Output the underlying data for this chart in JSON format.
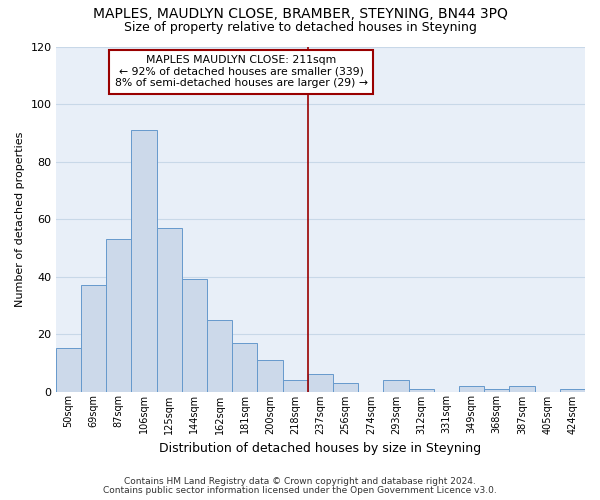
{
  "title": "MAPLES, MAUDLYN CLOSE, BRAMBER, STEYNING, BN44 3PQ",
  "subtitle": "Size of property relative to detached houses in Steyning",
  "xlabel": "Distribution of detached houses by size in Steyning",
  "ylabel": "Number of detached properties",
  "footnote1": "Contains HM Land Registry data © Crown copyright and database right 2024.",
  "footnote2": "Contains public sector information licensed under the Open Government Licence v3.0.",
  "bar_labels": [
    "50sqm",
    "69sqm",
    "87sqm",
    "106sqm",
    "125sqm",
    "144sqm",
    "162sqm",
    "181sqm",
    "200sqm",
    "218sqm",
    "237sqm",
    "256sqm",
    "274sqm",
    "293sqm",
    "312sqm",
    "331sqm",
    "349sqm",
    "368sqm",
    "387sqm",
    "405sqm",
    "424sqm"
  ],
  "bar_values": [
    15,
    37,
    53,
    91,
    57,
    39,
    25,
    17,
    11,
    4,
    6,
    3,
    0,
    4,
    1,
    0,
    2,
    1,
    2,
    0,
    1
  ],
  "bar_color": "#ccd9ea",
  "bar_edge_color": "#6699cc",
  "vline_x": 9.5,
  "vline_color": "#990000",
  "annotation_title": "MAPLES MAUDLYN CLOSE: 211sqm",
  "annotation_line1": "← 92% of detached houses are smaller (339)",
  "annotation_line2": "8% of semi-detached houses are larger (29) →",
  "annotation_box_color": "#990000",
  "ylim": [
    0,
    120
  ],
  "yticks": [
    0,
    20,
    40,
    60,
    80,
    100,
    120
  ],
  "grid_color": "#c8d8e8",
  "bg_color": "#e8eff8",
  "fig_bg_color": "#ffffff",
  "title_fontsize": 10,
  "subtitle_fontsize": 9,
  "ylabel_fontsize": 8,
  "xlabel_fontsize": 9,
  "footnote_fontsize": 6.5
}
